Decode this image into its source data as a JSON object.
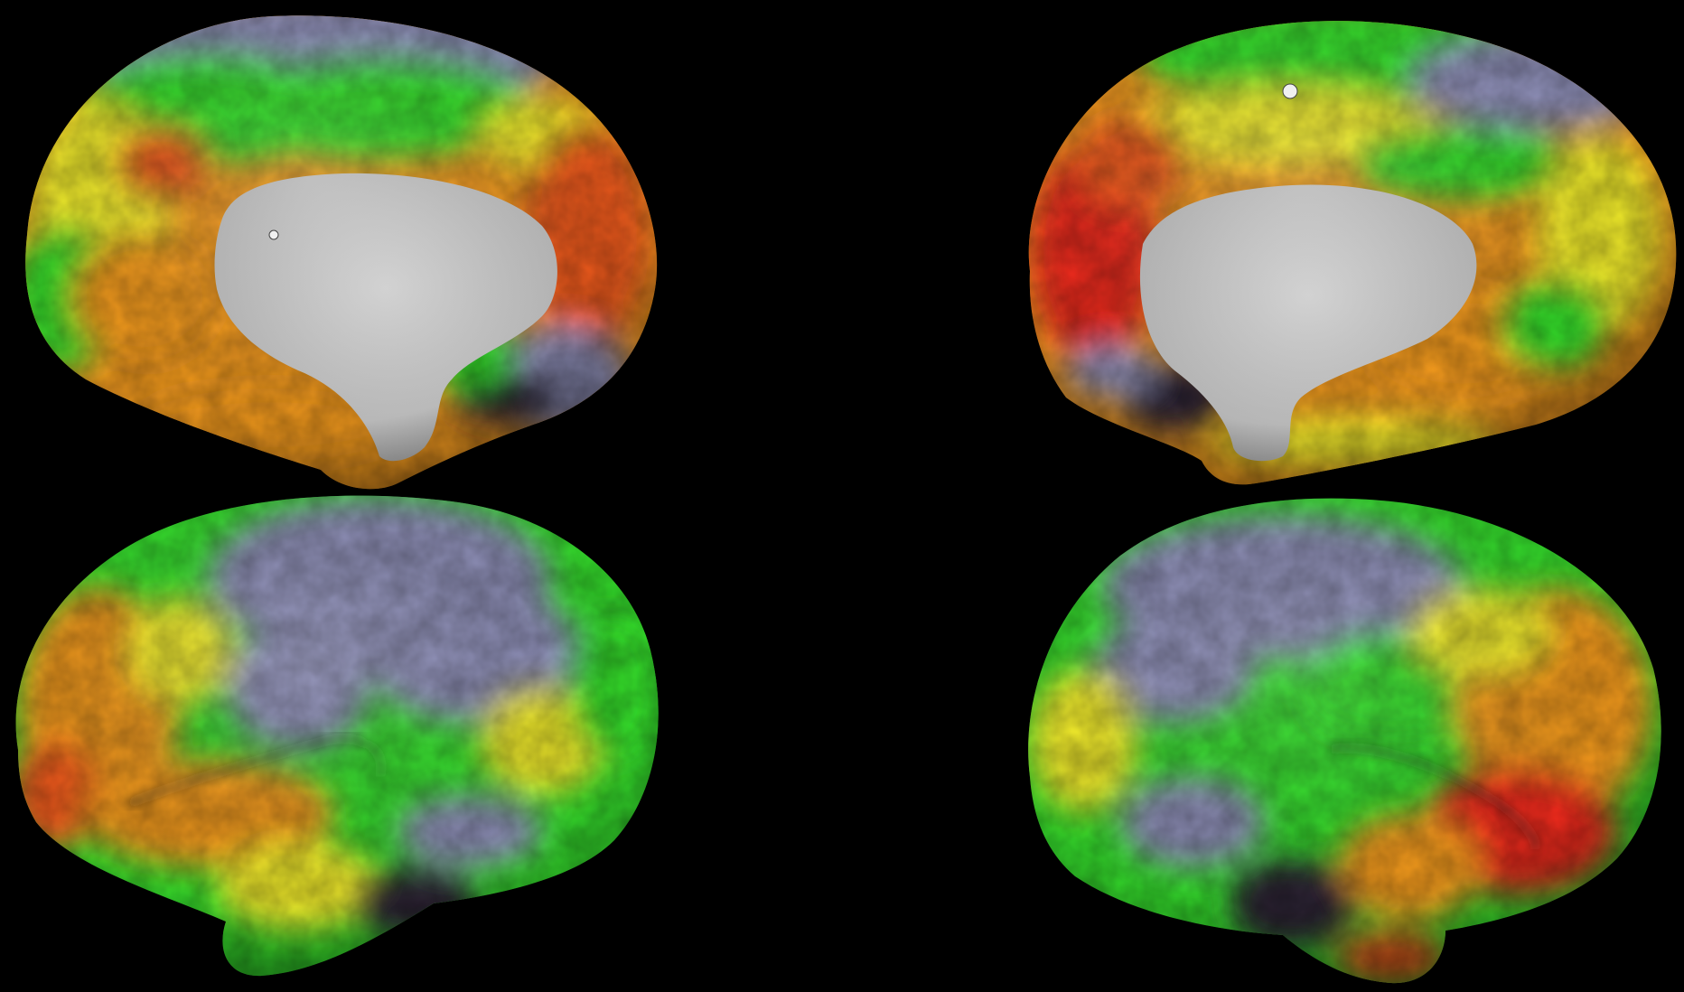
{
  "scene": {
    "background": "#000000",
    "views": [
      {
        "id": "left-medial",
        "hemisphere": "left",
        "surface": "medial"
      },
      {
        "id": "right-medial",
        "hemisphere": "right",
        "surface": "medial"
      },
      {
        "id": "left-lateral",
        "hemisphere": "left",
        "surface": "lateral"
      },
      {
        "id": "right-lateral",
        "hemisphere": "right",
        "surface": "lateral"
      }
    ],
    "colormap": {
      "low": "#2a2430",
      "lowmid": "#8e8fb8",
      "mid": "#35e02c",
      "midhigh": "#f2ec2a",
      "high": "#f39a1f",
      "max": "#ef2a1a",
      "medial_wall": "#c8c8c8"
    },
    "markers": [
      {
        "view": "left-medial",
        "type": "vertex-marker"
      },
      {
        "view": "right-medial",
        "type": "vertex-marker"
      }
    ]
  }
}
